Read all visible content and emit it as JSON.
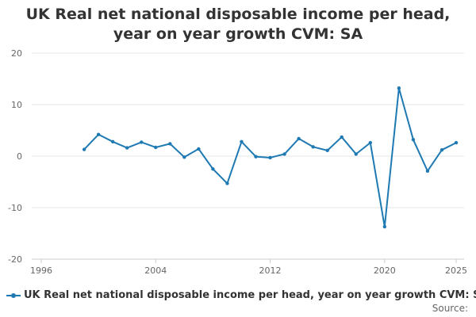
{
  "chart_data": {
    "type": "line",
    "title": "UK Real net national disposable income per head, year on year growth CVM: SA",
    "xlabel": "",
    "ylabel": "",
    "x_ticks": [
      "1996",
      "2004",
      "2012",
      "2020",
      "2025"
    ],
    "y_ticks": [
      "20",
      "10",
      "0",
      "-10",
      "-20"
    ],
    "xlim": [
      1996,
      2025
    ],
    "ylim": [
      -20,
      20
    ],
    "grid": true,
    "legend_position": "bottom-left",
    "series": [
      {
        "name": "UK Real net national disposable income per head, year on year growth CVM: SA",
        "color": "#1f7ab3",
        "points": [
          [
            1999,
            1.3
          ],
          [
            2000,
            4.2
          ],
          [
            2001,
            2.8
          ],
          [
            2002,
            1.6
          ],
          [
            2003,
            2.7
          ],
          [
            2004,
            1.7
          ],
          [
            2005,
            2.4
          ],
          [
            2006,
            -0.2
          ],
          [
            2007,
            1.4
          ],
          [
            2008,
            -2.5
          ],
          [
            2009,
            -5.3
          ],
          [
            2010,
            2.8
          ],
          [
            2011,
            -0.1
          ],
          [
            2012,
            -0.3
          ],
          [
            2013,
            0.4
          ],
          [
            2014,
            3.4
          ],
          [
            2015,
            1.8
          ],
          [
            2016,
            1.1
          ],
          [
            2017,
            3.7
          ],
          [
            2018,
            0.4
          ],
          [
            2019,
            2.6
          ],
          [
            2020,
            -13.7
          ],
          [
            2021,
            13.2
          ],
          [
            2022,
            3.2
          ],
          [
            2023,
            -2.9
          ],
          [
            2024,
            1.2
          ],
          [
            2025,
            2.6
          ]
        ]
      }
    ]
  },
  "footer": {
    "source_label": "Source:"
  }
}
